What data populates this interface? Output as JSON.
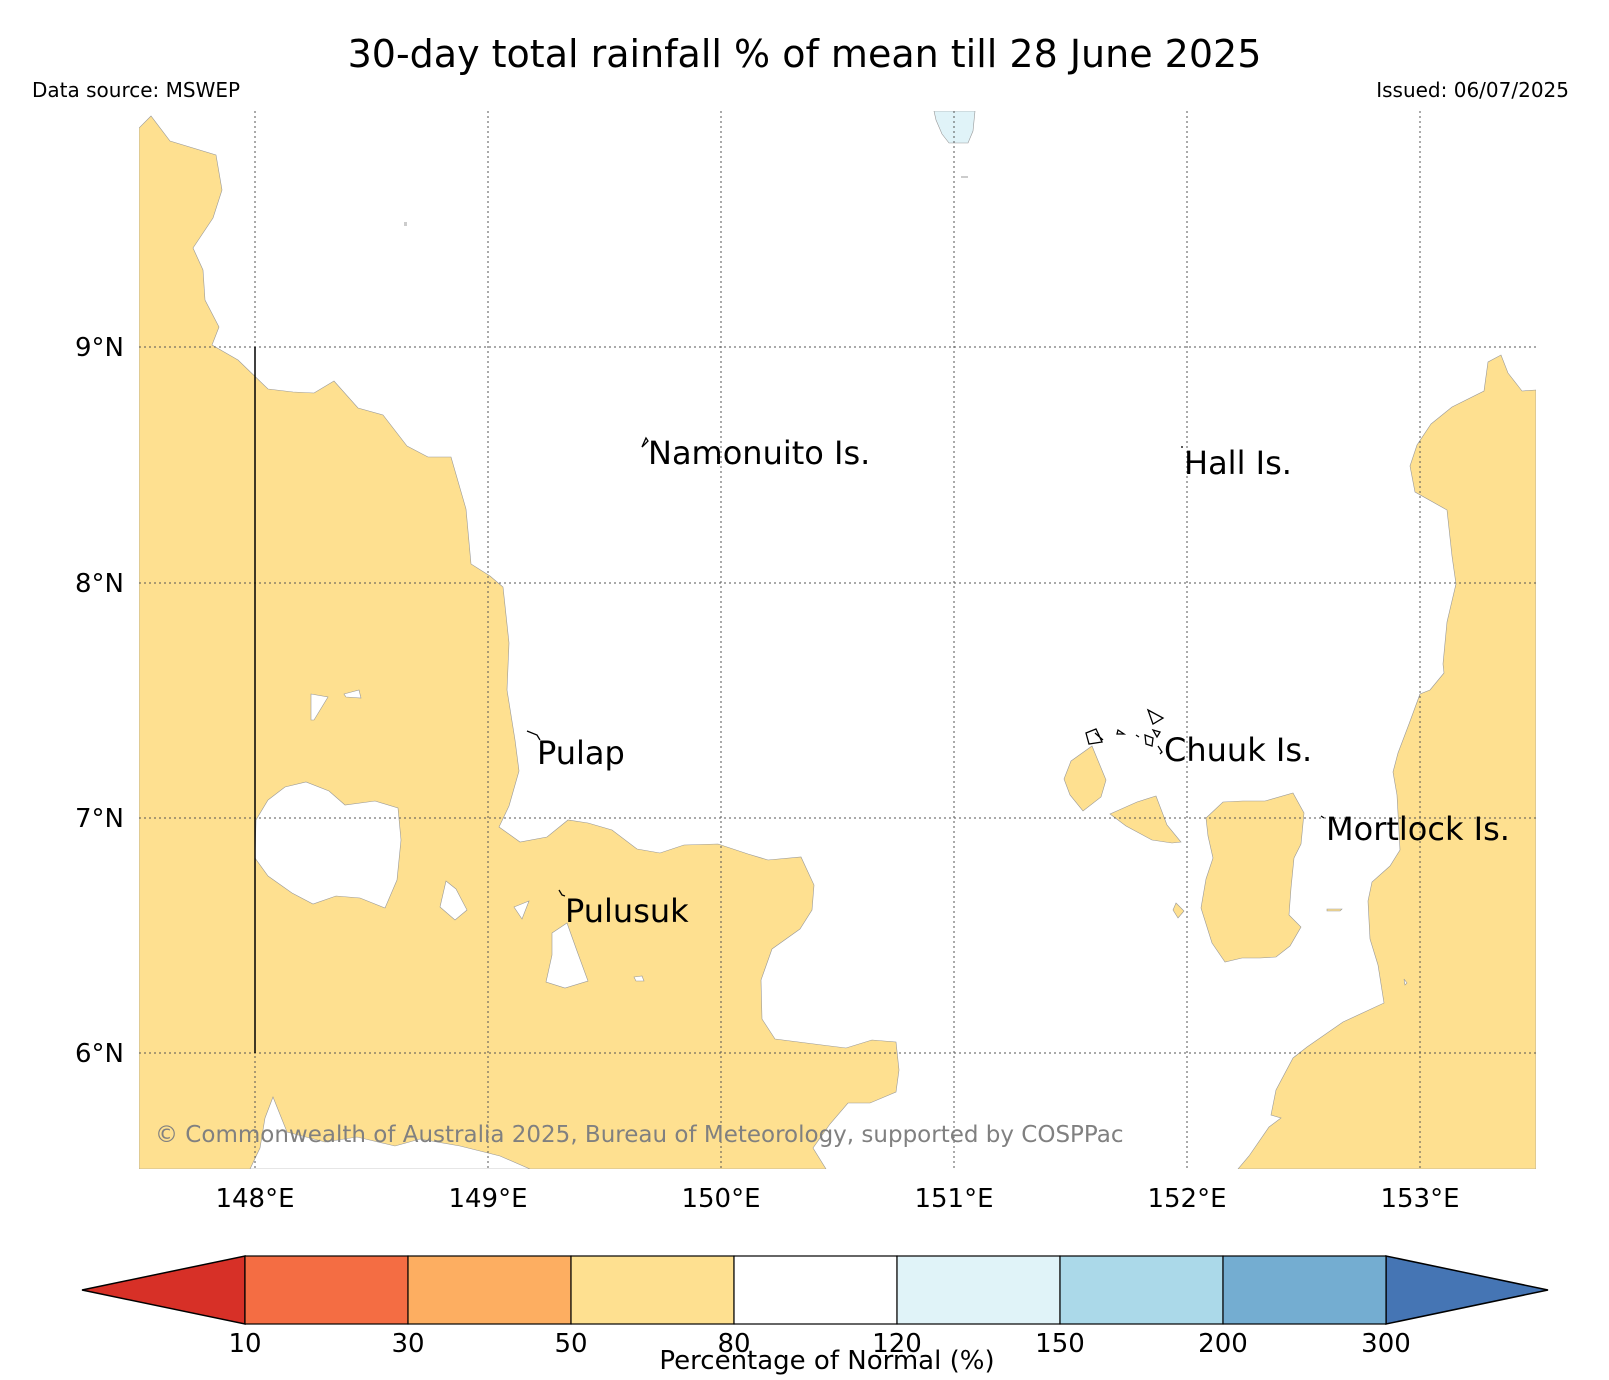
{
  "header": {
    "title": "30-day total rainfall % of mean till 28 June 2025",
    "source": "Data source: MSWEP",
    "issued": "Issued: 06/07/2025"
  },
  "map": {
    "lon_range": [
      147.5,
      153.5
    ],
    "lat_range": [
      5.5,
      9.9
    ],
    "lon_ticks": [
      "148°E",
      "149°E",
      "150°E",
      "151°E",
      "152°E",
      "153°E"
    ],
    "lat_ticks": [
      "9°N",
      "8°N",
      "7°N",
      "6°N"
    ],
    "grid": "dotted",
    "labels": {
      "namonuito": "Namonuito Is.",
      "hall": "Hall Is.",
      "pulap": "Pulap",
      "chuuk": "Chuuk Is.",
      "mortlock": "Mortlock Is.",
      "pulusuk": "Pulusuk"
    },
    "copyright": "© Commonwealth of Australia 2025, Bureau of Meteorology, supported by COSPPac"
  },
  "colorbar": {
    "label": "Percentage of Normal (%)",
    "ticks": [
      "10",
      "30",
      "50",
      "80",
      "120",
      "150",
      "200",
      "300"
    ],
    "colors": [
      "#d73027",
      "#f46d43",
      "#fdae61",
      "#fee090",
      "#ffffff",
      "#e0f3f8",
      "#abd9e9",
      "#74add1",
      "#4575b4"
    ]
  }
}
